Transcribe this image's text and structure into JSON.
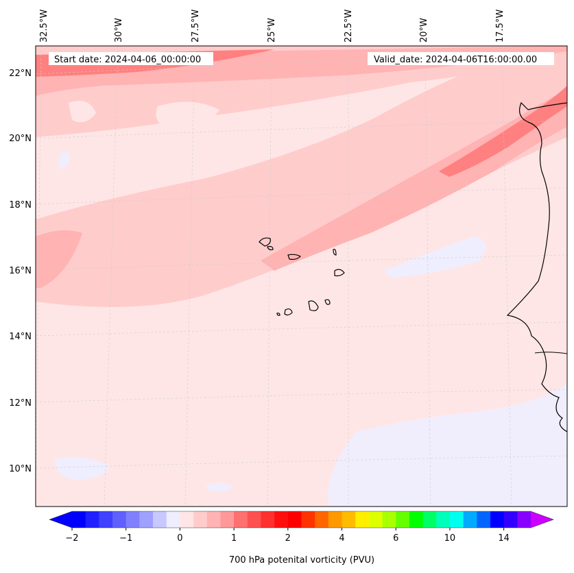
{
  "map": {
    "start_date_text": "Start date: 2024-04-06_00:00:00",
    "valid_date_text": "Valid_date: 2024-04-06T16:00:00.00",
    "lon_labels": [
      "32.5°W",
      "30°W",
      "27.5°W",
      "25°W",
      "22.5°W",
      "20°W",
      "17.5°W"
    ],
    "lat_labels": [
      "22°N",
      "20°N",
      "18°N",
      "16°N",
      "14°N",
      "12°N",
      "10°N"
    ],
    "colors": {
      "background": "#ffe6e6",
      "band_light": "#ffcccc",
      "band_mid": "#ffb3b3",
      "band_strong": "#ff8080",
      "negative_light": "#eeeeff",
      "coast": "#000000",
      "grid": "#cccccc"
    }
  },
  "colorbar": {
    "label": "700 hPa potenital vorticity (PVU)",
    "ticks": [
      "−2",
      "−1",
      "0",
      "1",
      "2",
      "4",
      "6",
      "10",
      "14"
    ],
    "colors": [
      "#0000ff",
      "#2020ff",
      "#4040ff",
      "#6060ff",
      "#8080ff",
      "#a0a0ff",
      "#c8c8ff",
      "#eeeeff",
      "#ffe6e6",
      "#ffcccc",
      "#ffb3b3",
      "#ff9999",
      "#ff7070",
      "#ff5050",
      "#ff3030",
      "#ff1010",
      "#ff0000",
      "#ff3300",
      "#ff6600",
      "#ff9900",
      "#ffbb00",
      "#ffee00",
      "#ddff00",
      "#aaff00",
      "#66ff00",
      "#00ff00",
      "#00ff66",
      "#00ffbb",
      "#00ffee",
      "#00aaff",
      "#0066ff",
      "#0000ff",
      "#3300ff",
      "#8800ff"
    ],
    "under_color": "#0000ff",
    "over_color": "#cc00ff"
  }
}
